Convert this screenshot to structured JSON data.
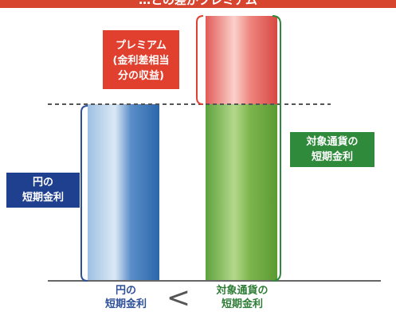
{
  "header": {
    "title": "…との差がプレミアム"
  },
  "bars": {
    "yen_short_term_rate": {
      "relative_height": 0.5
    },
    "target_currency_short_term_rate": {
      "relative_height": 0.5
    },
    "premium_interest_difference": {
      "relative_height": 0.25
    }
  },
  "callouts": {
    "premium": {
      "lines": [
        "プレミアム",
        "(金利差相当",
        "分の収益)"
      ],
      "color": "#e1402e"
    },
    "yen_rate": {
      "lines": [
        "円の",
        "短期金利"
      ],
      "color": "#1f3f8f"
    },
    "target_rate": {
      "lines": [
        "対象通貨の",
        "短期金利"
      ],
      "color": "#2f8a3b"
    }
  },
  "axis_labels": {
    "yen": [
      "円の",
      "短期金利"
    ],
    "comparison_symbol": "<",
    "target": [
      "対象通貨の",
      "短期金利"
    ]
  }
}
